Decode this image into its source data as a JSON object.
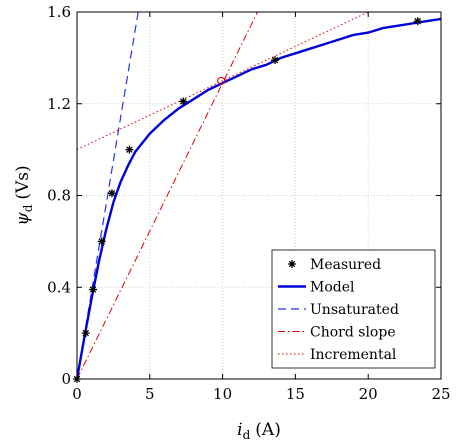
{
  "chart_data": {
    "type": "line",
    "xlabel": {
      "symbol": "i",
      "subscript": "d",
      "unit": "(A)"
    },
    "ylabel": {
      "symbol": "ψ",
      "subscript": "d",
      "unit": "(Vs)"
    },
    "xlim": [
      0,
      25
    ],
    "ylim": [
      0,
      1.6
    ],
    "xticks": [
      0,
      5,
      10,
      15,
      20,
      25
    ],
    "yticks": [
      0,
      0.4,
      0.8,
      1.2,
      1.6
    ],
    "xtick_labels": [
      "0",
      "5",
      "10",
      "15",
      "20",
      "25"
    ],
    "ytick_labels": [
      "0",
      "0.4",
      "0.8",
      "1.2",
      "1.6"
    ],
    "grid": true,
    "legend_position": "bottom-right",
    "colors": {
      "measured": "#000000",
      "model": "#0000dd",
      "unsaturated": "#2233ee",
      "chord": "#dd0000",
      "incremental": "#dd0000"
    },
    "series": [
      {
        "name": "Measured",
        "style": "markers",
        "x": [
          0,
          0.6,
          1.1,
          1.7,
          2.4,
          3.6,
          7.3,
          13.6,
          23.4
        ],
        "y": [
          0,
          0.2,
          0.39,
          0.6,
          0.81,
          1.0,
          1.21,
          1.39,
          1.56
        ]
      },
      {
        "name": "Model",
        "style": "solid",
        "x": [
          0,
          0.5,
          1,
          1.5,
          2,
          2.5,
          3,
          3.5,
          4,
          5,
          6,
          7,
          8,
          9,
          10,
          11,
          12,
          13,
          14,
          15,
          16,
          17,
          18,
          19,
          20,
          21,
          22,
          23,
          24,
          25
        ],
        "y": [
          0,
          0.18,
          0.35,
          0.51,
          0.65,
          0.77,
          0.86,
          0.93,
          0.99,
          1.07,
          1.13,
          1.18,
          1.22,
          1.26,
          1.29,
          1.32,
          1.35,
          1.37,
          1.4,
          1.42,
          1.44,
          1.46,
          1.48,
          1.5,
          1.51,
          1.53,
          1.54,
          1.55,
          1.56,
          1.57
        ]
      },
      {
        "name": "Unsaturated",
        "style": "dashed",
        "x": [
          0,
          4.2
        ],
        "y": [
          0,
          1.6
        ]
      },
      {
        "name": "Chord slope",
        "style": "dashdot",
        "x": [
          0,
          12.4
        ],
        "y": [
          0,
          1.6
        ]
      },
      {
        "name": "Incremental",
        "style": "dotted",
        "x": [
          0,
          25
        ],
        "y": [
          1.0,
          1.75
        ]
      }
    ],
    "annotations": [
      {
        "type": "circle-marker",
        "x": 9.9,
        "y": 1.3
      }
    ]
  }
}
